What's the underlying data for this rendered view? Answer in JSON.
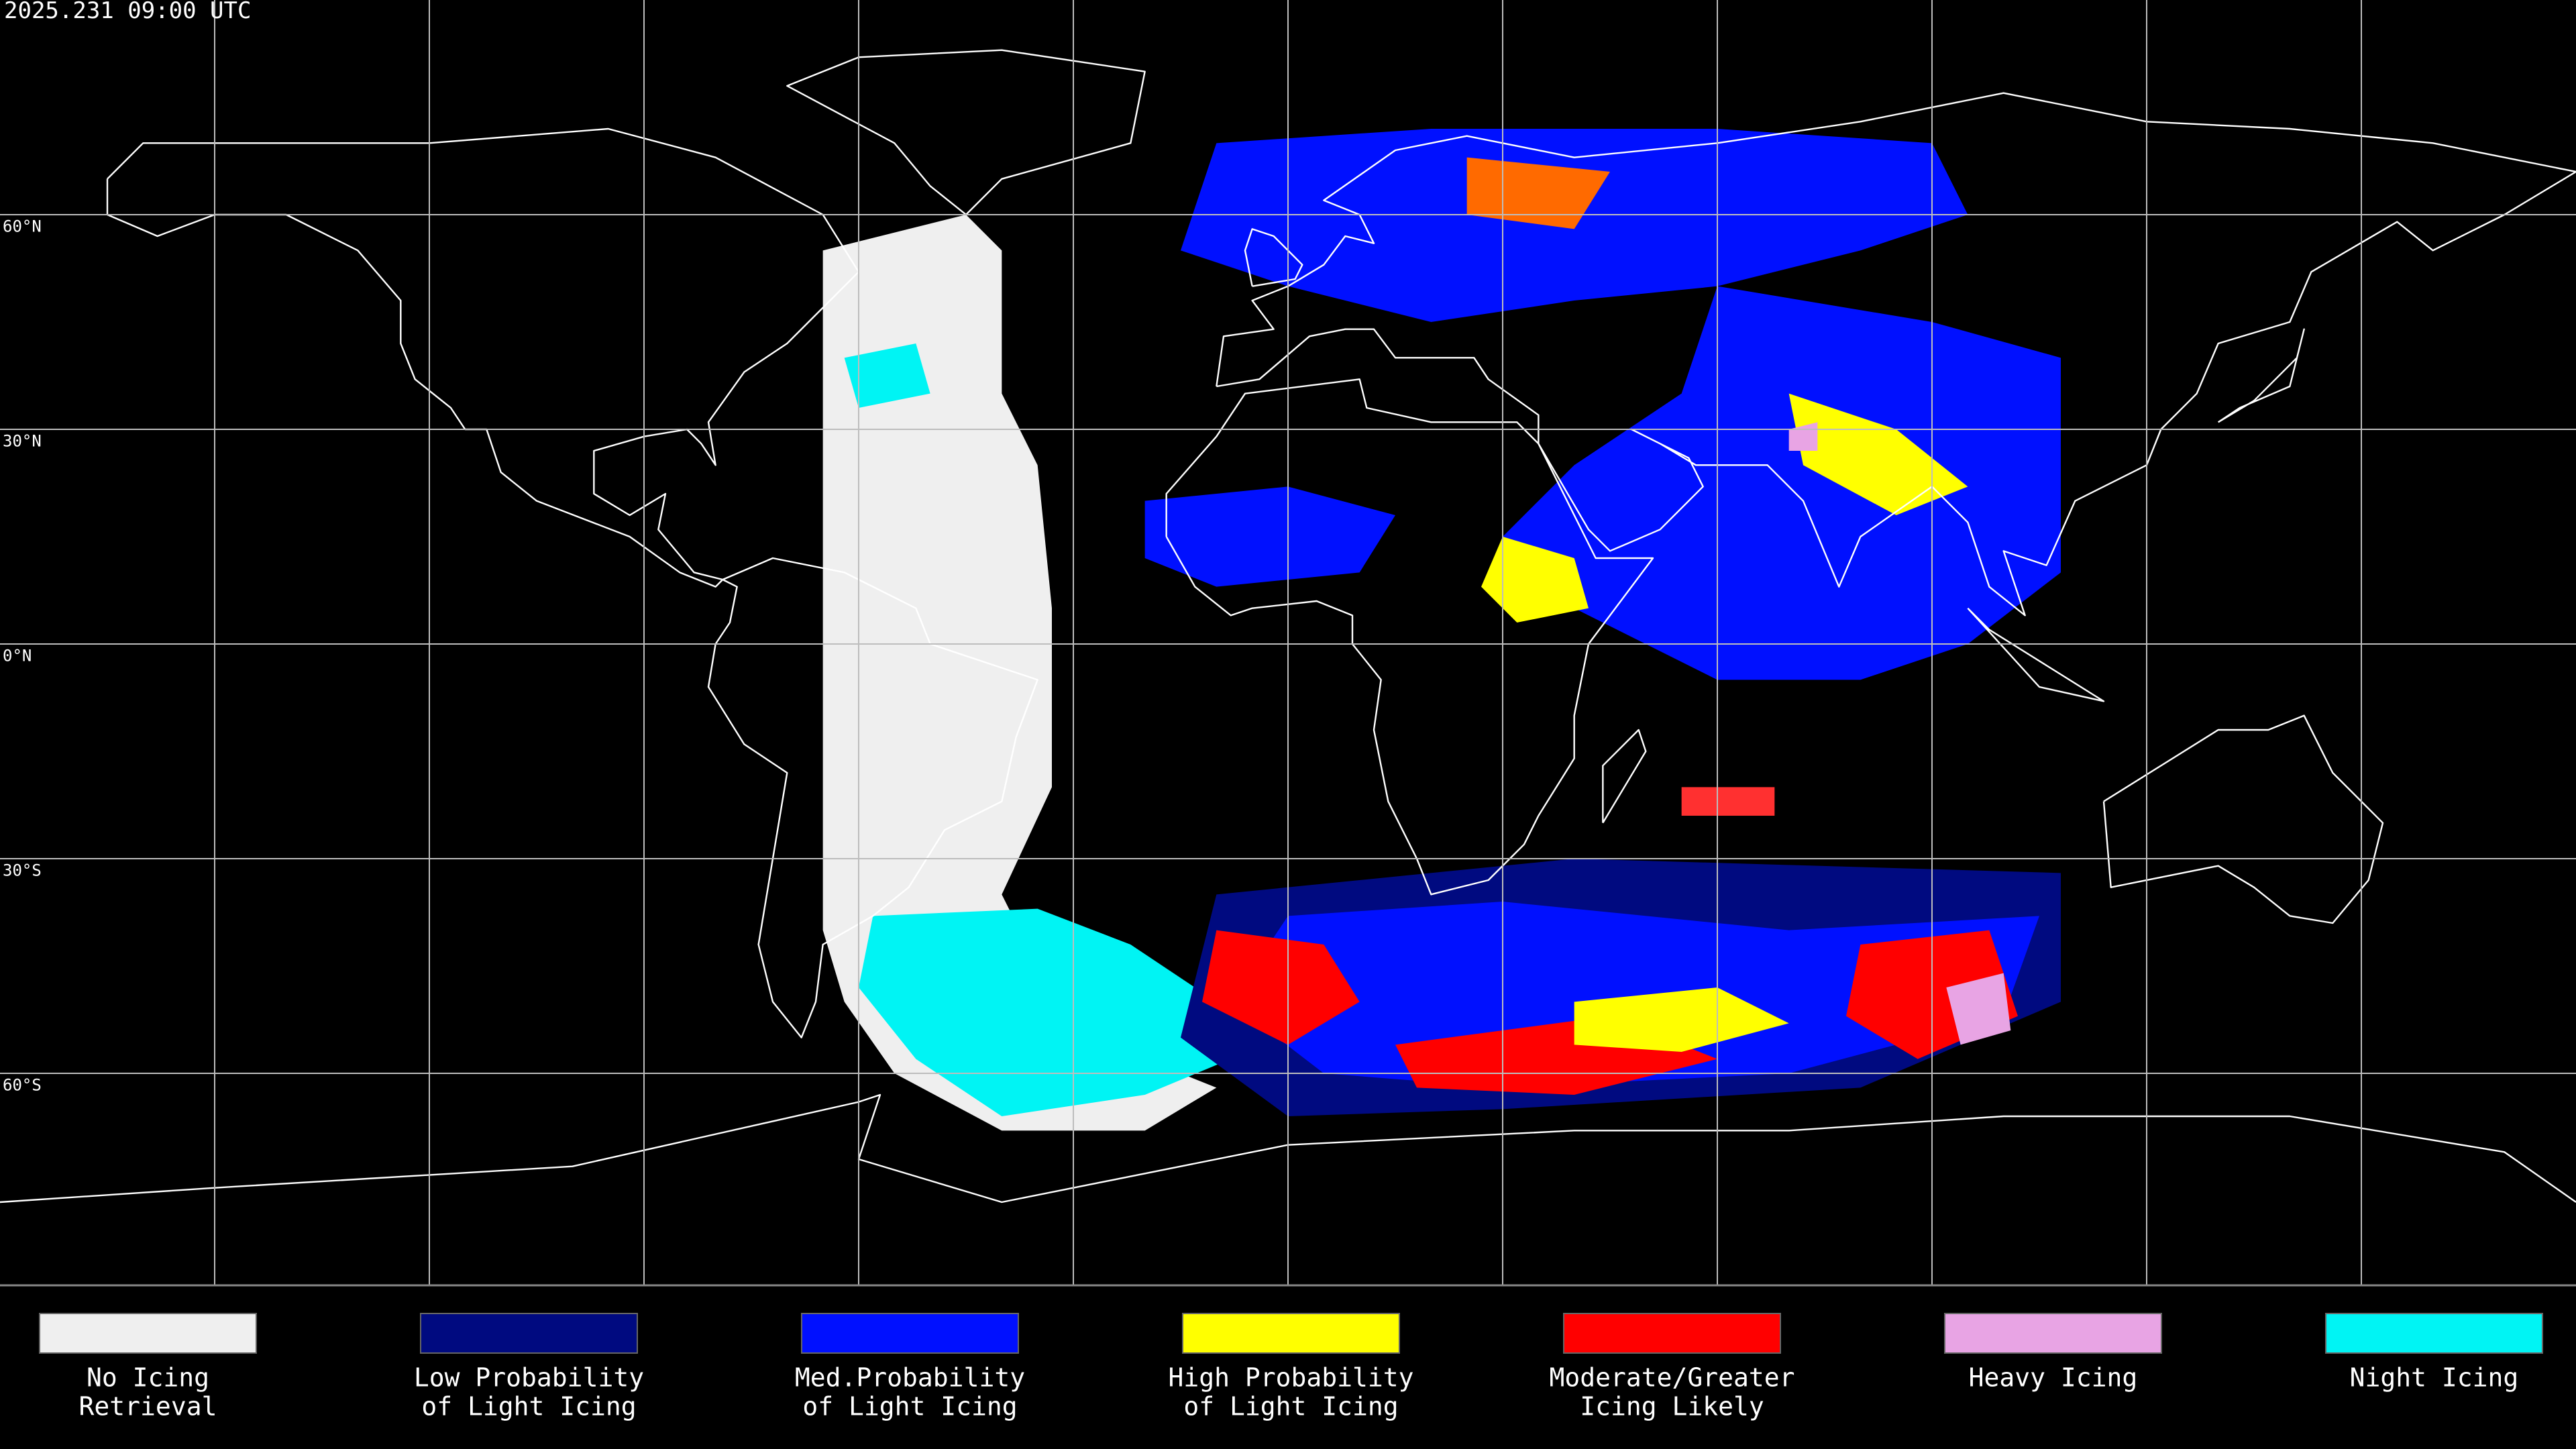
{
  "header": {
    "timestamp": "2025.231 09:00 UTC"
  },
  "map": {
    "latitude_labels": [
      "60°N",
      "30°N",
      "0°N",
      "30°S",
      "60°S"
    ]
  },
  "legend": {
    "items": [
      {
        "lines": [
          "No Icing",
          "Retrieval"
        ],
        "color": "#efefef"
      },
      {
        "lines": [
          "Low Probability",
          "of Light Icing"
        ],
        "color": "#000a80"
      },
      {
        "lines": [
          "Med.Probability",
          "of Light Icing"
        ],
        "color": "#0010ff"
      },
      {
        "lines": [
          "High Probability",
          "of Light Icing"
        ],
        "color": "#ffff00"
      },
      {
        "lines": [
          "Moderate/Greater",
          "Icing Likely"
        ],
        "color": "#ff0000"
      },
      {
        "lines": [
          "Heavy Icing"
        ],
        "color": "#e8a4e4"
      },
      {
        "lines": [
          "Night Icing"
        ],
        "color": "#00f4f4"
      }
    ]
  }
}
